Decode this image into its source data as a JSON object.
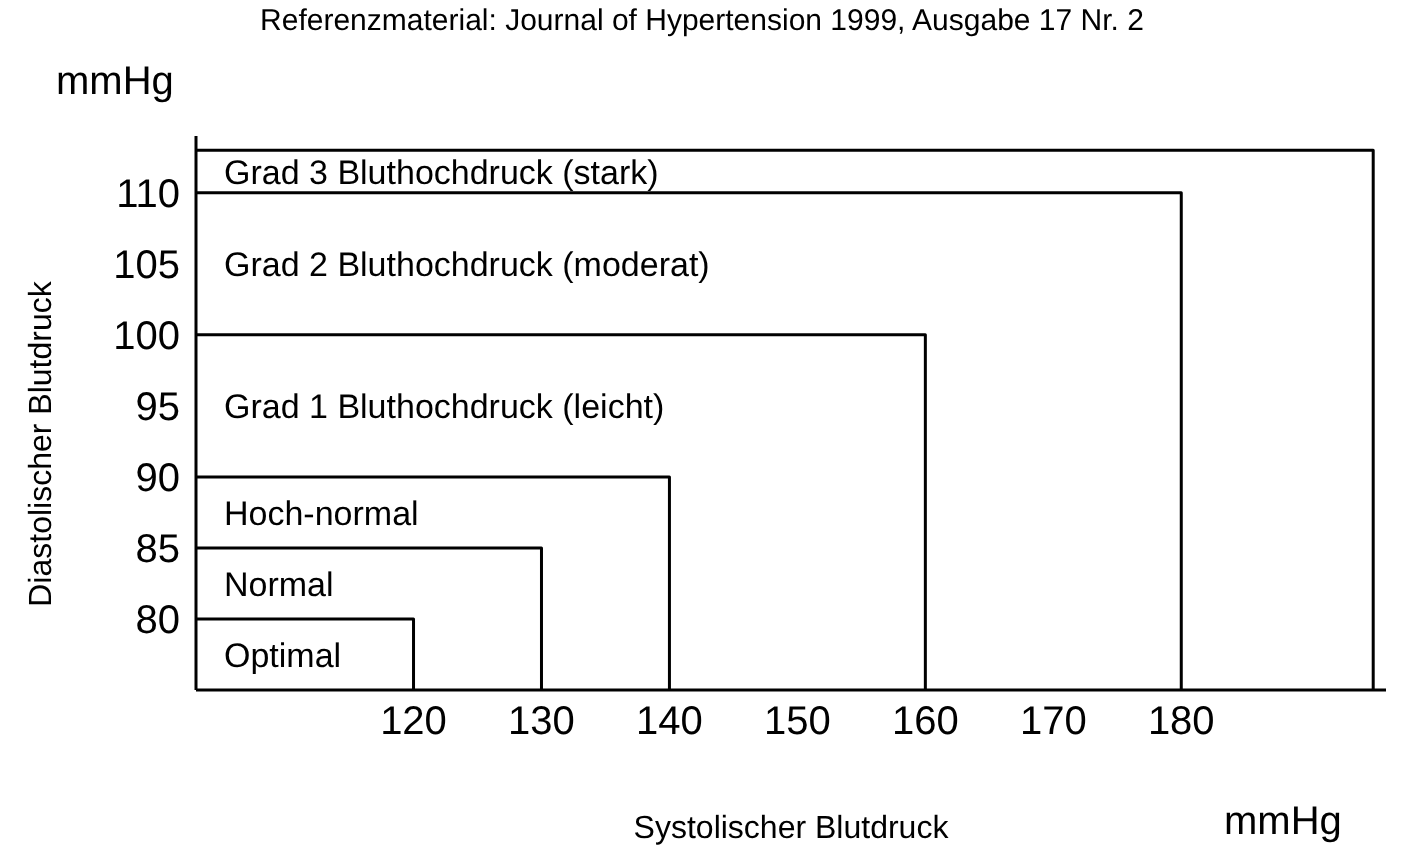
{
  "chart_data": {
    "type": "line",
    "title": "Referenzmaterial: Journal of Hypertension 1999, Ausgabe 17 Nr. 2",
    "xlabel": "Systolischer Blutdruck",
    "ylabel": "Diastolischer Blutdruck",
    "xlim": [
      103,
      196
    ],
    "ylim": [
      75,
      114
    ],
    "xticks": [
      120,
      130,
      140,
      150,
      160,
      170,
      180
    ],
    "yticks": [
      80,
      85,
      90,
      95,
      100,
      105,
      110
    ],
    "grid": false,
    "marker": "none",
    "line_style": "solid",
    "series": [
      {
        "name": "Optimal",
        "color": "#000000",
        "x": [
          103,
          120,
          120
        ],
        "values": [
          80,
          80,
          75
        ]
      },
      {
        "name": "Normal",
        "color": "#000000",
        "x": [
          103,
          130,
          130
        ],
        "values": [
          85,
          85,
          75
        ]
      },
      {
        "name": "Hoch-normal",
        "color": "#000000",
        "x": [
          103,
          140,
          140
        ],
        "values": [
          90,
          90,
          75
        ]
      },
      {
        "name": "Grad 1 Bluthochdruck (leicht)",
        "color": "#000000",
        "x": [
          103,
          160,
          160
        ],
        "values": [
          100,
          100,
          75
        ]
      },
      {
        "name": "Grad 2 Bluthochdruck (moderat)",
        "color": "#000000",
        "x": [
          103,
          180,
          180
        ],
        "values": [
          110,
          110,
          75
        ]
      },
      {
        "name": "Grad 3 Bluthochdruck (stark)",
        "color": "#000000",
        "x": [
          103,
          195,
          195
        ],
        "values": [
          113,
          113,
          75
        ]
      }
    ],
    "annotations": [
      "mmHg",
      "mmHg"
    ]
  }
}
